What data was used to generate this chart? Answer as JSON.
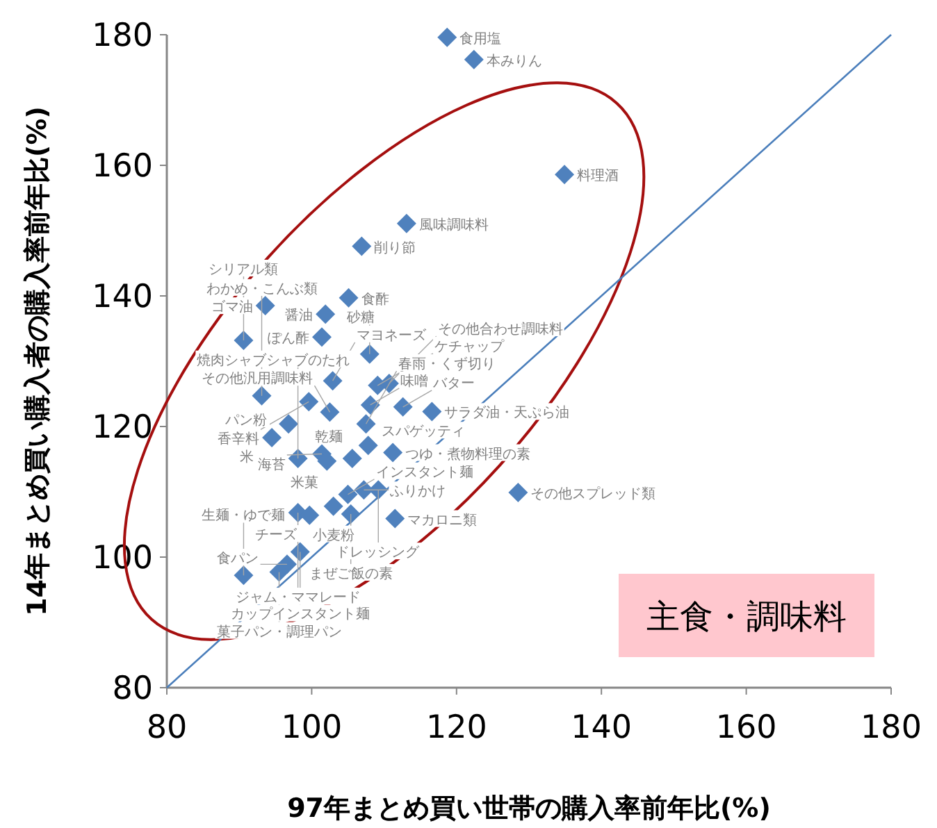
{
  "chart_data": {
    "type": "scatter",
    "xlabel": "97年まとめ買い世帯の購入率前年比(%)",
    "ylabel": "14年まとめ買い購入者の購入率前年比(%)",
    "xlim": [
      80,
      180
    ],
    "ylim": [
      80,
      180
    ],
    "xticks": [
      80,
      100,
      120,
      140,
      160,
      180
    ],
    "yticks": [
      80,
      100,
      120,
      140,
      160,
      180
    ],
    "grid": false,
    "annotations": [
      "主食・調味料"
    ],
    "series": [
      {
        "type": "scatter",
        "marker": "diamond",
        "color": "#4f81bd",
        "x": [
          118.7,
          122.4,
          134.9,
          113.1,
          106.9,
          105.1,
          93.6,
          101.9,
          90.6,
          101.4,
          108.0,
          102.9,
          109.1,
          110.7,
          93.1,
          99.6,
          102.5,
          108.1,
          112.6,
          116.6,
          96.8,
          107.5,
          94.5,
          107.8,
          111.2,
          98.1,
          101.4,
          102.1,
          105.6,
          105.0,
          107.2,
          109.2,
          103.0,
          98.1,
          99.7,
          105.4,
          111.5,
          128.5,
          98.4,
          96.6,
          95.5,
          90.6
        ],
        "values": [
          179.6,
          176.2,
          158.6,
          151.1,
          147.6,
          139.7,
          138.5,
          137.2,
          133.2,
          133.7,
          131.1,
          127.0,
          126.3,
          126.6,
          124.7,
          123.8,
          122.2,
          123.3,
          123.0,
          122.3,
          120.4,
          120.4,
          118.3,
          117.1,
          116.0,
          115.1,
          115.8,
          114.7,
          115.1,
          109.6,
          110.3,
          110.3,
          107.8,
          106.8,
          106.4,
          106.6,
          105.9,
          109.9,
          100.8,
          98.9,
          97.7,
          97.2
        ],
        "value_labels": [
          "食用塩",
          "本みりん",
          "料理酒",
          "風味調味料",
          "削り節",
          "食酢",
          "ゴマ油",
          "醤油",
          "シリアル類",
          "ぽん酢",
          "砂糖",
          "マヨネーズ",
          "ケチャップ",
          "その他合わせ調味料",
          "わかめ・こんぶ類",
          "香辛料",
          "その他汎用調味料",
          "味噌",
          "バター",
          "サラダ油・天ぷら油",
          "パン粉",
          "春雨・くず切り",
          "米",
          "スパゲッティ",
          "つゆ・煮物料理の素",
          "焼肉シャブシャブのたれ",
          "海苔",
          "米菓",
          "乾麺",
          "インスタント麺",
          "ふりかけ",
          "ドレッシング",
          "小麦粉",
          "ジャム・ママレード",
          "チーズ",
          "まぜご飯の素",
          "マカロニ類",
          "その他スプレッド類",
          "カップインスタント麺",
          "食パン",
          "菓子パン・調理パン",
          "生麺・ゆで麺"
        ]
      },
      {
        "type": "line",
        "marker": "none",
        "color": "#4a7ebb",
        "x": [
          80,
          180
        ],
        "values": [
          80,
          180
        ]
      }
    ]
  }
}
